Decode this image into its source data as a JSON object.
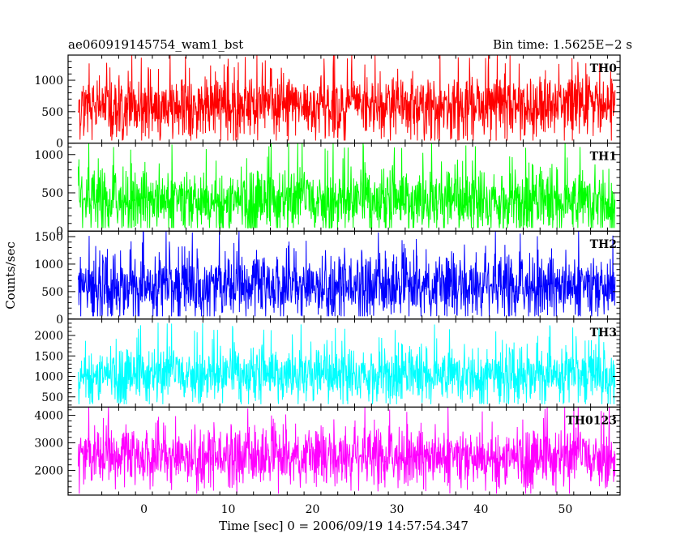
{
  "header": {
    "left_title": "ae060919145754_wam1_bst",
    "right_title": "Bin time: 1.5625E−2 s"
  },
  "chart_data": {
    "type": "line",
    "xlabel": "Time [sec] 0 = 2006/09/19 14:57:54.347",
    "ylabel": "Counts/sec",
    "xlim": [
      -9,
      56.5
    ],
    "x_ticks": [
      0,
      10,
      20,
      30,
      40,
      50
    ],
    "x_range_data": [
      -7.8,
      55.9
    ],
    "grid": false,
    "panels": [
      {
        "label": "TH0",
        "color": "#ff0000",
        "ylim": [
          0,
          1400
        ],
        "yticks": [
          0,
          500,
          1000
        ],
        "mean": 590,
        "spread": 260,
        "min": 40,
        "max": 1400
      },
      {
        "label": "TH1",
        "color": "#00ff00",
        "ylim": [
          0,
          1150
        ],
        "yticks": [
          0,
          500,
          1000
        ],
        "mean": 400,
        "spread": 210,
        "min": 40,
        "max": 1150
      },
      {
        "label": "TH2",
        "color": "#0000ff",
        "ylim": [
          0,
          1600
        ],
        "yticks": [
          0,
          500,
          1000,
          1500
        ],
        "mean": 590,
        "spread": 290,
        "min": 50,
        "max": 1600
      },
      {
        "label": "TH3",
        "color": "#00ffff",
        "ylim": [
          250,
          2400
        ],
        "yticks": [
          500,
          1000,
          1500,
          2000
        ],
        "mean": 1050,
        "spread": 330,
        "min": 320,
        "max": 2400
      },
      {
        "label": "TH0123",
        "color": "#ff00ff",
        "ylim": [
          1100,
          4300
        ],
        "yticks": [
          2000,
          3000,
          4000
        ],
        "mean": 2480,
        "spread": 520,
        "min": 1150,
        "max": 4300
      }
    ]
  }
}
